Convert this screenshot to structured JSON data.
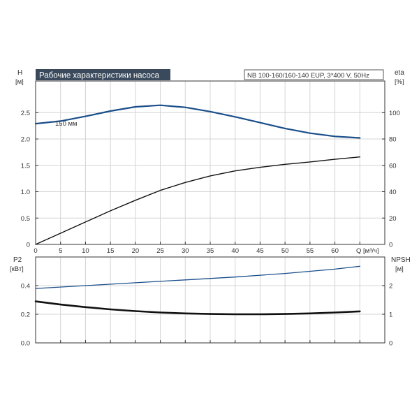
{
  "chart_data": [
    {
      "type": "line",
      "title": "Рабочие характеристики насоса",
      "subtitle": "NB 100-160/160-140 EUP, 3*400 V, 50Hz",
      "ylabel": "H",
      "yunit": "[м]",
      "y2label": "eta",
      "y2unit": "[%]",
      "xlabel": "Q [м³/ч]",
      "xlim": [
        0,
        70
      ],
      "ylim": [
        0,
        3.1
      ],
      "y2lim": [
        0,
        124
      ],
      "xticks": [
        0,
        5,
        10,
        15,
        20,
        25,
        30,
        35,
        40,
        45,
        50,
        55,
        60
      ],
      "yticks": [
        "0",
        "0.5",
        "1.0",
        "1.5",
        "2.0",
        "2.5"
      ],
      "y2ticks": [
        "0",
        "20",
        "40",
        "60",
        "80",
        "100"
      ],
      "grid": true,
      "series": [
        {
          "name": "150 мм",
          "axis": "left",
          "color": "#1a4e8a",
          "x": [
            0,
            5,
            10,
            15,
            20,
            25,
            30,
            35,
            40,
            45,
            50,
            55,
            60,
            65
          ],
          "y": [
            2.29,
            2.34,
            2.43,
            2.53,
            2.61,
            2.64,
            2.6,
            2.52,
            2.42,
            2.31,
            2.2,
            2.11,
            2.05,
            2.02
          ]
        },
        {
          "name": "",
          "axis": "right",
          "color": "#111111",
          "x": [
            0,
            5,
            10,
            15,
            20,
            25,
            30,
            35,
            40,
            45,
            50,
            55,
            60,
            65
          ],
          "y": [
            0,
            8.5,
            17,
            25.5,
            33.5,
            41,
            47,
            52,
            55.8,
            58.5,
            60.8,
            62.6,
            64.6,
            66.4
          ]
        }
      ]
    },
    {
      "type": "line",
      "ylabel": "P2",
      "yunit": "[кВт]",
      "y2label": "NPSH",
      "y2unit": "[м]",
      "xlim": [
        0,
        70
      ],
      "ylim": [
        0,
        0.6
      ],
      "y2lim": [
        0,
        3
      ],
      "yticks": [
        "0.0",
        "0.2",
        "0.4"
      ],
      "y2ticks": [
        "0",
        "1",
        "2"
      ],
      "grid": true,
      "series": [
        {
          "name": "",
          "axis": "left",
          "color": "#1a4e8a",
          "x": [
            0,
            10,
            20,
            30,
            40,
            50,
            60,
            65
          ],
          "y": [
            0.38,
            0.4,
            0.42,
            0.44,
            0.46,
            0.485,
            0.515,
            0.535
          ]
        },
        {
          "name": "",
          "axis": "right",
          "color": "#111111",
          "x": [
            0,
            5,
            10,
            15,
            20,
            25,
            30,
            35,
            40,
            45,
            50,
            55,
            60,
            65
          ],
          "y": [
            1.45,
            1.34,
            1.25,
            1.17,
            1.11,
            1.06,
            1.03,
            1.01,
            1.0,
            1.0,
            1.01,
            1.03,
            1.06,
            1.1
          ]
        }
      ]
    }
  ]
}
